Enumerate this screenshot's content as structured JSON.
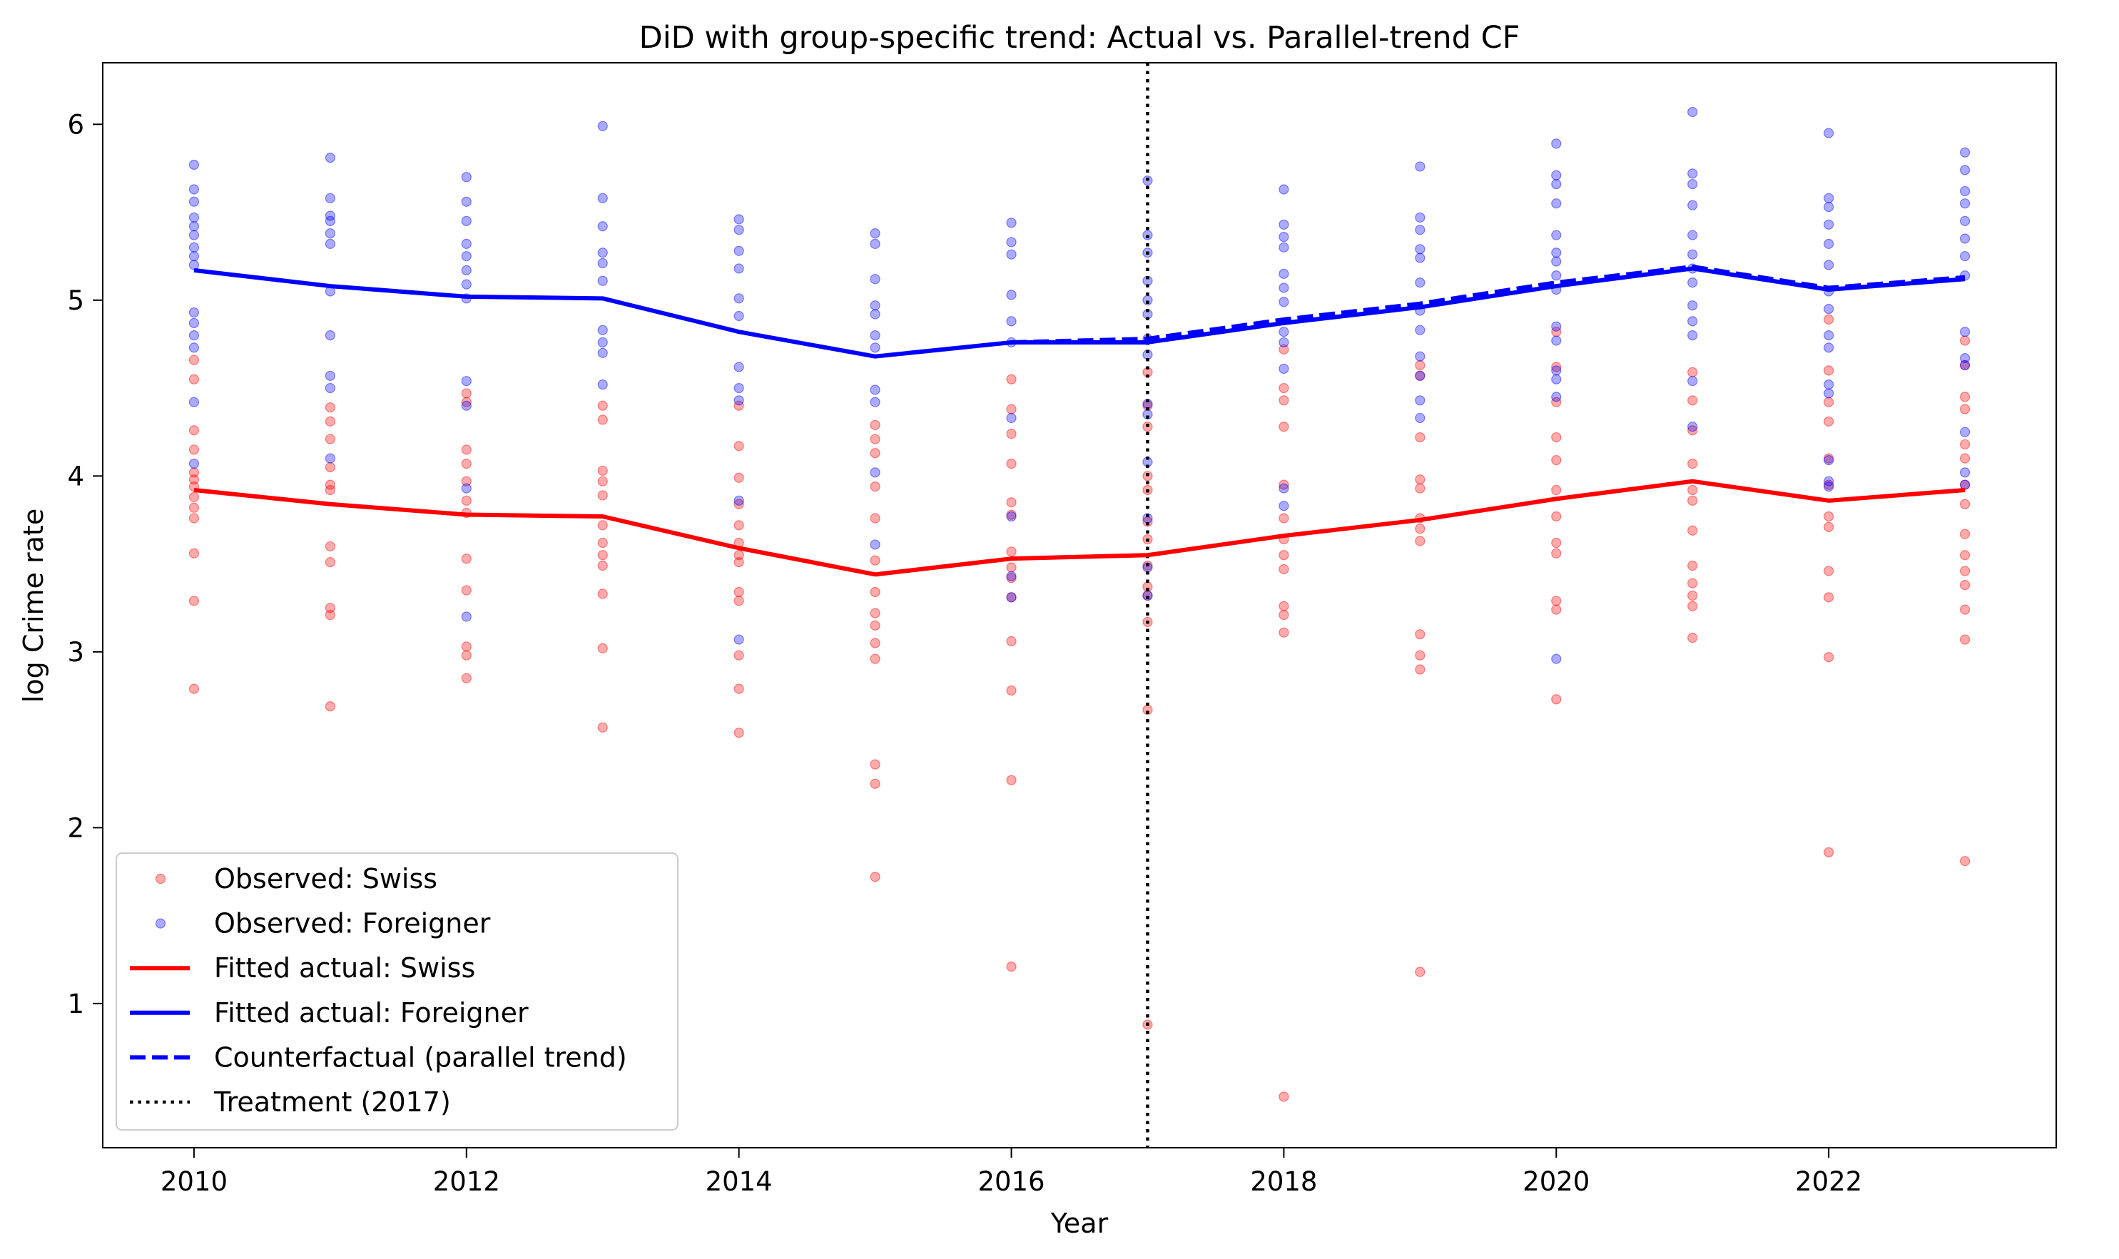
{
  "chart_data": {
    "type": "scatter",
    "title": "DiD with group-specific trend: Actual vs. Parallel-trend CF",
    "xlabel": "Year",
    "ylabel": "log Crime rate",
    "xlim": [
      2009.33,
      2023.67
    ],
    "ylim": [
      0.18,
      6.35
    ],
    "xticks": [
      2010,
      2012,
      2014,
      2016,
      2018,
      2020,
      2022
    ],
    "yticks": [
      1,
      2,
      3,
      4,
      5,
      6
    ],
    "grid": false,
    "legend_position": "lower-left",
    "treatment_year": 2017,
    "colors": {
      "swiss": "#ff0000",
      "foreigner": "#0000ff",
      "treatment": "#000000"
    },
    "legend": [
      {
        "key": "obs_swiss",
        "label": "Observed: Swiss"
      },
      {
        "key": "obs_foreigner",
        "label": "Observed: Foreigner"
      },
      {
        "key": "fit_swiss",
        "label": "Fitted actual: Swiss"
      },
      {
        "key": "fit_foreigner",
        "label": "Fitted actual: Foreigner"
      },
      {
        "key": "counterfactual",
        "label": "Counterfactual (parallel trend)"
      },
      {
        "key": "treatment",
        "label": "Treatment (2017)"
      }
    ],
    "x": [
      2010,
      2011,
      2012,
      2013,
      2014,
      2015,
      2016,
      2017,
      2018,
      2019,
      2020,
      2021,
      2022,
      2023
    ],
    "series": [
      {
        "name": "Fitted actual: Swiss",
        "style": "solid",
        "values": [
          3.92,
          3.84,
          3.78,
          3.77,
          3.59,
          3.44,
          3.53,
          3.55,
          3.66,
          3.75,
          3.87,
          3.97,
          3.86,
          3.92
        ]
      },
      {
        "name": "Fitted actual: Foreigner",
        "style": "solid",
        "values": [
          5.17,
          5.08,
          5.02,
          5.01,
          4.82,
          4.68,
          4.76,
          4.76,
          4.87,
          4.96,
          5.08,
          5.18,
          5.06,
          5.12
        ]
      },
      {
        "name": "Counterfactual (parallel trend)",
        "style": "dashed",
        "values": [
          null,
          null,
          null,
          null,
          null,
          null,
          4.76,
          4.78,
          4.89,
          4.98,
          5.1,
          5.19,
          5.07,
          5.13
        ]
      }
    ],
    "observed": {
      "swiss": [
        {
          "x": 2010,
          "y": [
            4.66,
            4.55,
            4.26,
            4.15,
            4.02,
            3.98,
            3.94,
            3.88,
            3.82,
            3.76,
            3.56,
            3.29,
            2.79
          ]
        },
        {
          "x": 2011,
          "y": [
            4.39,
            4.31,
            4.21,
            4.05,
            3.95,
            3.92,
            3.6,
            3.51,
            3.25,
            3.21,
            2.69
          ]
        },
        {
          "x": 2012,
          "y": [
            4.47,
            4.42,
            4.15,
            4.07,
            3.97,
            3.86,
            3.79,
            3.53,
            3.35,
            3.03,
            2.98,
            2.85
          ]
        },
        {
          "x": 2013,
          "y": [
            4.4,
            4.32,
            4.03,
            3.97,
            3.89,
            3.72,
            3.62,
            3.55,
            3.49,
            3.33,
            3.02,
            2.57
          ]
        },
        {
          "x": 2014,
          "y": [
            4.4,
            4.17,
            3.99,
            3.84,
            3.72,
            3.62,
            3.55,
            3.51,
            3.34,
            3.29,
            2.98,
            2.79,
            2.54
          ]
        },
        {
          "x": 2015,
          "y": [
            4.29,
            4.21,
            4.13,
            3.94,
            3.76,
            3.52,
            3.34,
            3.22,
            3.15,
            3.05,
            2.96,
            2.36,
            2.25,
            1.72
          ]
        },
        {
          "x": 2016,
          "y": [
            4.55,
            4.38,
            4.24,
            4.07,
            3.85,
            3.78,
            3.57,
            3.48,
            3.42,
            3.31,
            3.06,
            2.78,
            2.27,
            1.21
          ]
        },
        {
          "x": 2017,
          "y": [
            4.59,
            4.4,
            4.28,
            4.0,
            3.92,
            3.74,
            3.64,
            3.49,
            3.37,
            3.32,
            3.17,
            2.67,
            0.88
          ]
        },
        {
          "x": 2018,
          "y": [
            4.72,
            4.5,
            4.43,
            4.28,
            3.95,
            3.76,
            3.64,
            3.55,
            3.47,
            3.26,
            3.21,
            3.11,
            0.47
          ]
        },
        {
          "x": 2019,
          "y": [
            4.63,
            4.57,
            4.22,
            3.98,
            3.93,
            3.76,
            3.7,
            3.63,
            3.1,
            2.98,
            2.9,
            1.18
          ]
        },
        {
          "x": 2020,
          "y": [
            4.82,
            4.62,
            4.42,
            4.22,
            4.09,
            3.92,
            3.77,
            3.62,
            3.56,
            3.29,
            3.24,
            2.73
          ]
        },
        {
          "x": 2021,
          "y": [
            4.59,
            4.43,
            4.26,
            4.07,
            3.92,
            3.86,
            3.69,
            3.49,
            3.39,
            3.32,
            3.26,
            3.08
          ]
        },
        {
          "x": 2022,
          "y": [
            4.89,
            4.6,
            4.42,
            4.31,
            4.1,
            3.95,
            3.77,
            3.71,
            3.46,
            3.31,
            2.97,
            1.86
          ]
        },
        {
          "x": 2023,
          "y": [
            4.77,
            4.63,
            4.45,
            4.38,
            4.18,
            4.1,
            3.95,
            3.84,
            3.67,
            3.55,
            3.46,
            3.38,
            3.24,
            3.07,
            1.81
          ]
        }
      ],
      "foreigner": [
        {
          "x": 2010,
          "y": [
            5.77,
            5.63,
            5.56,
            5.47,
            5.42,
            5.37,
            5.3,
            5.25,
            5.2,
            4.93,
            4.87,
            4.8,
            4.73,
            4.42,
            4.07
          ]
        },
        {
          "x": 2011,
          "y": [
            5.81,
            5.58,
            5.48,
            5.45,
            5.38,
            5.32,
            5.05,
            4.8,
            4.57,
            4.5,
            4.1
          ]
        },
        {
          "x": 2012,
          "y": [
            5.7,
            5.56,
            5.45,
            5.32,
            5.25,
            5.17,
            5.09,
            5.01,
            4.54,
            4.4,
            3.93,
            3.2
          ]
        },
        {
          "x": 2013,
          "y": [
            5.99,
            5.58,
            5.42,
            5.27,
            5.21,
            5.11,
            4.83,
            4.76,
            4.7,
            4.52
          ]
        },
        {
          "x": 2014,
          "y": [
            5.46,
            5.4,
            5.28,
            5.18,
            5.01,
            4.91,
            4.62,
            4.5,
            4.43,
            3.86,
            3.07
          ]
        },
        {
          "x": 2015,
          "y": [
            5.38,
            5.32,
            5.12,
            4.97,
            4.92,
            4.8,
            4.73,
            4.49,
            4.42,
            4.02,
            3.61
          ]
        },
        {
          "x": 2016,
          "y": [
            5.44,
            5.33,
            5.26,
            5.03,
            4.88,
            4.76,
            4.33,
            3.77,
            3.43,
            3.31
          ]
        },
        {
          "x": 2017,
          "y": [
            5.68,
            5.37,
            5.27,
            5.11,
            5.0,
            4.92,
            4.78,
            4.69,
            4.41,
            4.35,
            4.08,
            3.76,
            3.48,
            3.32
          ]
        },
        {
          "x": 2018,
          "y": [
            5.63,
            5.43,
            5.36,
            5.3,
            5.15,
            5.07,
            4.99,
            4.82,
            4.76,
            4.61,
            3.93,
            3.83
          ]
        },
        {
          "x": 2019,
          "y": [
            5.76,
            5.47,
            5.4,
            5.29,
            5.24,
            5.1,
            4.94,
            4.83,
            4.68,
            4.57,
            4.43,
            4.33
          ]
        },
        {
          "x": 2020,
          "y": [
            5.89,
            5.71,
            5.66,
            5.55,
            5.37,
            5.27,
            5.22,
            5.14,
            5.06,
            4.85,
            4.77,
            4.6,
            4.55,
            4.45,
            2.96
          ]
        },
        {
          "x": 2021,
          "y": [
            6.07,
            5.72,
            5.66,
            5.54,
            5.37,
            5.26,
            5.18,
            5.1,
            4.97,
            4.88,
            4.8,
            4.54,
            4.28
          ]
        },
        {
          "x": 2022,
          "y": [
            5.95,
            5.58,
            5.53,
            5.43,
            5.32,
            5.2,
            5.05,
            4.95,
            4.8,
            4.73,
            4.52,
            4.47,
            4.09,
            3.97,
            3.94
          ]
        },
        {
          "x": 2023,
          "y": [
            5.84,
            5.74,
            5.62,
            5.55,
            5.45,
            5.35,
            5.25,
            5.14,
            4.82,
            4.67,
            4.63,
            4.25,
            4.02,
            3.95
          ]
        }
      ]
    }
  }
}
